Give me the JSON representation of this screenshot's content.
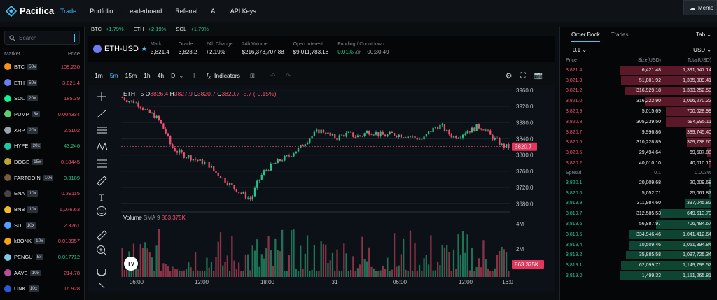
{
  "nav": {
    "brand": "Pacifica",
    "items": [
      "Trade",
      "Portfolio",
      "Leaderboard",
      "Referral",
      "AI",
      "API Keys"
    ],
    "active": "Trade",
    "memo": "Memo"
  },
  "search": {
    "placeholder": "Search"
  },
  "markets": {
    "head_market": "Market",
    "head_price": "Price",
    "rows": [
      {
        "sym": "BTC",
        "lev": "50x",
        "price": "109,230",
        "dir": "dn",
        "color": "#f7931a"
      },
      {
        "sym": "ETH",
        "lev": "50x",
        "price": "3,821.4",
        "dir": "dn",
        "color": "#6f7cf0"
      },
      {
        "sym": "SOL",
        "lev": "20x",
        "price": "185.39",
        "dir": "dn",
        "color": "#14f195"
      },
      {
        "sym": "PUMP",
        "lev": "5x",
        "price": "0.004334",
        "dir": "dn",
        "color": "#5cd16b"
      },
      {
        "sym": "XRP",
        "lev": "20x",
        "price": "2.5102",
        "dir": "dn",
        "color": "#9aa3ab"
      },
      {
        "sym": "HYPE",
        "lev": "20x",
        "price": "43.246",
        "dir": "up",
        "color": "#1ec9a0"
      },
      {
        "sym": "DOGE",
        "lev": "15x",
        "price": "0.18445",
        "dir": "dn",
        "color": "#c2a633"
      },
      {
        "sym": "FARTCOIN",
        "lev": "10x",
        "price": "0.3109",
        "dir": "up",
        "color": "#7a5a3a"
      },
      {
        "sym": "ENA",
        "lev": "10x",
        "price": "0.39115",
        "dir": "dn",
        "color": "#444"
      },
      {
        "sym": "BNB",
        "lev": "10x",
        "price": "1,076.63",
        "dir": "dn",
        "color": "#f3ba2f"
      },
      {
        "sym": "SUI",
        "lev": "10x",
        "price": "2.3261",
        "dir": "dn",
        "color": "#4da2ff"
      },
      {
        "sym": "kBONK",
        "lev": "10x",
        "price": "0.013957",
        "dir": "dn",
        "color": "#f8a21a"
      },
      {
        "sym": "PENGU",
        "lev": "5x",
        "price": "0.017712",
        "dir": "up",
        "color": "#7fc8e8"
      },
      {
        "sym": "AAVE",
        "lev": "10x",
        "price": "214.78",
        "dir": "dn",
        "color": "#b6509e"
      },
      {
        "sym": "LINK",
        "lev": "10x",
        "price": "16.928",
        "dir": "dn",
        "color": "#2a5ada"
      }
    ]
  },
  "tickers": [
    {
      "sym": "BTC",
      "chg": "+1.79%"
    },
    {
      "sym": "ETH",
      "chg": "+2.19%"
    },
    {
      "sym": "SOL",
      "chg": "+1.79%"
    }
  ],
  "header": {
    "pair": "ETH-USD",
    "stats": [
      {
        "label": "Mark",
        "value": "3,821.4",
        "cls": ""
      },
      {
        "label": "Oracle",
        "value": "3,823.2",
        "cls": "dn"
      },
      {
        "label": "24h Change",
        "value": "+2.19%",
        "cls": "up"
      },
      {
        "label": "24h Volume",
        "value": "$216,378,707.88",
        "cls": ""
      },
      {
        "label": "Open Interest",
        "value": "$9,011,783.18",
        "cls": ""
      }
    ],
    "funding_label": "Funding / Countdown",
    "funding_rate": "0.01%",
    "funding_period": "/8h",
    "countdown": "00:30:49"
  },
  "toolbar": {
    "timeframes": [
      "1m",
      "5m",
      "15m",
      "1h",
      "4h",
      "D"
    ],
    "active": "5m",
    "indicators": "Indicators"
  },
  "chart_data": {
    "type": "candlestick",
    "symbol": "ETH · 5",
    "ohlc": {
      "o": "3826.4",
      "h": "3827.9",
      "l": "3820.7",
      "c": "3820.7",
      "chg": "-5.7 (-0.15%)"
    },
    "ylim": [
      3660,
      3970
    ],
    "yticks": [
      "3960.0",
      "3920.0",
      "3880.0",
      "3840.0",
      "3800.0",
      "3760.0",
      "3720.0",
      "3680.0"
    ],
    "ytick_values": [
      3960,
      3920,
      3880,
      3840,
      3800,
      3760,
      3720,
      3680
    ],
    "last_price": "3820.7",
    "last_value": 3820.7,
    "xticks": [
      "06:00",
      "12:00",
      "18:00",
      "31",
      "06:00",
      "12:00",
      "16:0"
    ],
    "path": [
      3942,
      3934,
      3930,
      3922,
      3905,
      3900,
      3885,
      3858,
      3820,
      3808,
      3800,
      3795,
      3788,
      3782,
      3778,
      3760,
      3748,
      3735,
      3722,
      3710,
      3700,
      3690,
      3730,
      3758,
      3770,
      3780,
      3790,
      3795,
      3808,
      3818,
      3835,
      3848,
      3860,
      3858,
      3846,
      3842,
      3850,
      3852,
      3846,
      3848,
      3858,
      3856,
      3850,
      3848,
      3852,
      3850,
      3848,
      3846,
      3842,
      3838,
      3855,
      3868,
      3872,
      3855,
      3845,
      3848,
      3858,
      3862,
      3870,
      3866,
      3848,
      3836,
      3822,
      3820
    ],
    "volume": {
      "label": "Volume",
      "sma": "SMA 9",
      "value": "863.375K",
      "yticks": [
        "4M",
        "2M"
      ]
    }
  },
  "orderbook": {
    "tabs": [
      "Order Book",
      "Trades"
    ],
    "active": "Order Book",
    "layout": "Tab",
    "precision": "0.1",
    "unit": "USD",
    "head": [
      "Price",
      "Size(USD)",
      "Total(USD)"
    ],
    "asks": [
      {
        "p": "3,821.4",
        "s": "6,421.48",
        "t": "1,391,547.14",
        "d": 1.0
      },
      {
        "p": "3,821.3",
        "s": "51,801.92",
        "t": "1,385,089.41",
        "d": 0.99
      },
      {
        "p": "3,821.2",
        "s": "316,929.18",
        "t": "1,333,252.59",
        "d": 0.95
      },
      {
        "p": "3,821.0",
        "s": "316,222.90",
        "t": "1,016,270.22",
        "d": 0.73
      },
      {
        "p": "3,820.9",
        "s": "5,015.69",
        "t": "700,028.99",
        "d": 0.5
      },
      {
        "p": "3,820.8",
        "s": "305,239.50",
        "t": "694,995.11",
        "d": 0.5
      },
      {
        "p": "3,820.7",
        "s": "9,996.86",
        "t": "389,745.40",
        "d": 0.28
      },
      {
        "p": "3,820.6",
        "s": "310,228.89",
        "t": "379,738.60",
        "d": 0.27
      },
      {
        "p": "3,820.5",
        "s": "29,494.64",
        "t": "69,507.88",
        "d": 0.05
      },
      {
        "p": "3,820.2",
        "s": "40,010.10",
        "t": "40,010.10",
        "d": 0.03
      }
    ],
    "spread": {
      "label": "Spread",
      "value": "0.1",
      "pct": "0.003%"
    },
    "bids": [
      {
        "p": "3,820.1",
        "s": "20,009.68",
        "t": "20,009.68",
        "d": 0.02
      },
      {
        "p": "3,820.0",
        "s": "5,052.71",
        "t": "25,061.87",
        "d": 0.02
      },
      {
        "p": "3,819.9",
        "s": "311,984.60",
        "t": "337,045.82",
        "d": 0.29
      },
      {
        "p": "3,819.7",
        "s": "312,585.53",
        "t": "649,613.70",
        "d": 0.56
      },
      {
        "p": "3,819.6",
        "s": "56,887.97",
        "t": "706,484.67",
        "d": 0.61
      },
      {
        "p": "3,819.5",
        "s": "334,946.46",
        "t": "1,041,412.64",
        "d": 0.9
      },
      {
        "p": "3,819.4",
        "s": "10,509.46",
        "t": "1,051,894.84",
        "d": 0.91
      },
      {
        "p": "3,819.2",
        "s": "35,885.58",
        "t": "1,087,725.34",
        "d": 0.94
      },
      {
        "p": "3,819.1",
        "s": "62,099.71",
        "t": "1,149,799.57",
        "d": 0.99
      },
      {
        "p": "3,819.0",
        "s": "1,499.33",
        "t": "1,151,265.81",
        "d": 1.0
      }
    ]
  },
  "colors": {
    "accent": "#3ec6ff",
    "up": "#2ec28b",
    "down": "#f0506e"
  }
}
